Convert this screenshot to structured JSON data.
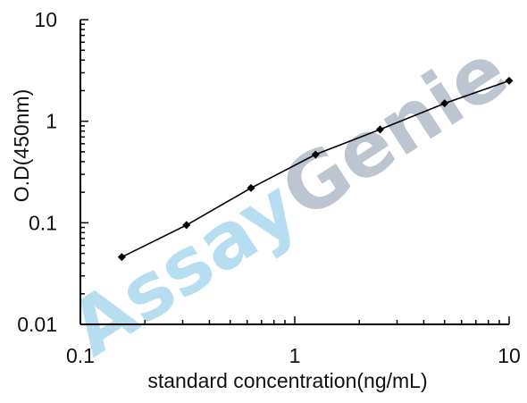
{
  "watermark": {
    "part1": "Assay",
    "part2": "Genie",
    "color1": "#9fd3ec",
    "color2": "#a8b2c2"
  },
  "chart_data": {
    "type": "line",
    "xscale": "log",
    "yscale": "log",
    "xlim": [
      0.1,
      10
    ],
    "ylim": [
      0.01,
      10
    ],
    "xlabel": "standard concentration(ng/mL)",
    "ylabel": "O.D(450nm)",
    "xticks": [
      "0.1",
      "1",
      "10"
    ],
    "yticks": [
      "0.01",
      "0.1",
      "1",
      "10"
    ],
    "grid": false,
    "series": [
      {
        "x": [
          0.156,
          0.3125,
          0.625,
          1.25,
          2.5,
          5,
          10
        ],
        "y": [
          0.046,
          0.095,
          0.22,
          0.47,
          0.83,
          1.5,
          2.5
        ]
      }
    ]
  }
}
